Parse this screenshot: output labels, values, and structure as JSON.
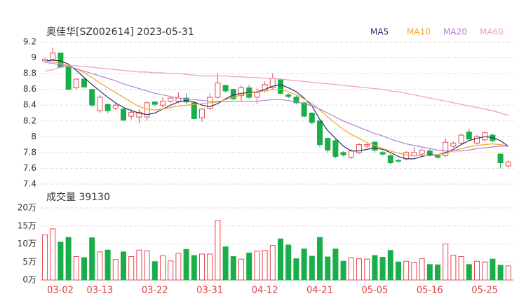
{
  "chart_data": [
    {
      "type": "candlestick",
      "title": "奥佳华[SZ002614] 2023-05-31",
      "open": [
        8.96,
        8.98,
        9.06,
        8.9,
        8.62,
        8.73,
        8.6,
        8.33,
        8.41,
        8.36,
        8.35,
        8.26,
        8.25,
        8.25,
        8.44,
        8.4,
        8.45,
        8.45,
        8.49,
        8.43,
        8.24,
        8.36,
        8.5,
        8.65,
        8.6,
        8.52,
        8.62,
        8.5,
        8.58,
        8.62,
        8.72,
        8.53,
        8.5,
        8.43,
        8.3,
        8.2,
        7.98,
        7.95,
        7.8,
        7.74,
        7.8,
        7.88,
        7.93,
        7.8,
        7.76,
        7.7,
        7.72,
        7.76,
        7.78,
        7.82,
        7.76,
        7.76,
        7.88,
        7.92,
        8.06,
        7.92,
        7.96,
        8.02,
        7.78,
        7.63
      ],
      "high": [
        9.0,
        9.13,
        9.06,
        8.9,
        8.74,
        8.74,
        8.6,
        8.53,
        8.42,
        8.42,
        8.36,
        8.35,
        8.35,
        8.45,
        8.45,
        8.5,
        8.5,
        8.56,
        8.55,
        8.44,
        8.36,
        8.55,
        8.8,
        8.66,
        8.61,
        8.65,
        8.66,
        8.62,
        8.7,
        8.8,
        8.74,
        8.55,
        8.52,
        8.44,
        8.31,
        8.21,
        7.99,
        7.97,
        7.82,
        7.84,
        7.92,
        7.92,
        7.95,
        7.82,
        7.78,
        7.72,
        7.82,
        7.87,
        7.85,
        7.84,
        7.78,
        7.98,
        7.94,
        8.04,
        8.1,
        8.02,
        8.07,
        8.04,
        7.79,
        7.7
      ],
      "low": [
        8.95,
        8.97,
        8.87,
        8.6,
        8.6,
        8.62,
        8.38,
        8.3,
        8.3,
        8.34,
        8.2,
        8.22,
        8.17,
        8.2,
        8.4,
        8.37,
        8.43,
        8.43,
        8.42,
        8.22,
        8.19,
        8.34,
        8.48,
        8.56,
        8.46,
        8.45,
        8.48,
        8.42,
        8.56,
        8.6,
        8.53,
        8.49,
        8.41,
        8.24,
        8.16,
        7.87,
        7.8,
        7.73,
        7.75,
        7.72,
        7.78,
        7.86,
        7.8,
        7.76,
        7.65,
        7.67,
        7.7,
        7.74,
        7.76,
        7.75,
        7.72,
        7.74,
        7.86,
        7.9,
        7.95,
        7.9,
        7.94,
        7.93,
        7.6,
        7.61
      ],
      "close": [
        8.98,
        9.06,
        8.88,
        8.6,
        8.73,
        8.63,
        8.4,
        8.5,
        8.33,
        8.4,
        8.21,
        8.31,
        8.31,
        8.43,
        8.41,
        8.45,
        8.49,
        8.49,
        8.44,
        8.23,
        8.35,
        8.5,
        8.68,
        8.58,
        8.48,
        8.62,
        8.5,
        8.56,
        8.66,
        8.74,
        8.55,
        8.51,
        8.43,
        8.26,
        8.18,
        7.9,
        7.83,
        7.75,
        7.77,
        7.82,
        7.9,
        7.9,
        7.83,
        7.78,
        7.67,
        7.69,
        7.8,
        7.8,
        7.83,
        7.77,
        7.74,
        7.93,
        7.92,
        8.02,
        7.97,
        8.0,
        8.05,
        7.95,
        7.67,
        7.68
      ],
      "up_color": "#e8474f",
      "down_color": "#1aae4b",
      "series": [
        {
          "name": "MA5",
          "color": "#2b2f6b",
          "values": [
            8.96,
            8.97,
            8.96,
            8.92,
            8.84,
            8.75,
            8.66,
            8.58,
            8.5,
            8.43,
            8.37,
            8.33,
            8.3,
            8.28,
            8.3,
            8.35,
            8.4,
            8.44,
            8.46,
            8.44,
            8.4,
            8.38,
            8.42,
            8.48,
            8.53,
            8.55,
            8.56,
            8.57,
            8.6,
            8.64,
            8.66,
            8.62,
            8.57,
            8.49,
            8.39,
            8.22,
            8.08,
            7.98,
            7.88,
            7.82,
            7.82,
            7.84,
            7.86,
            7.84,
            7.8,
            7.75,
            7.72,
            7.72,
            7.75,
            7.77,
            7.77,
            7.8,
            7.84,
            7.9,
            7.95,
            7.98,
            8.0,
            7.99,
            7.95,
            7.88
          ]
        },
        {
          "name": "MA10",
          "color": "#f5a623",
          "values": [
            8.96,
            8.95,
            8.93,
            8.9,
            8.86,
            8.81,
            8.75,
            8.68,
            8.62,
            8.56,
            8.5,
            8.44,
            8.38,
            8.35,
            8.34,
            8.35,
            8.37,
            8.39,
            8.4,
            8.41,
            8.42,
            8.43,
            8.44,
            8.47,
            8.5,
            8.53,
            8.55,
            8.57,
            8.58,
            8.6,
            8.6,
            8.57,
            8.53,
            8.48,
            8.42,
            8.34,
            8.25,
            8.17,
            8.09,
            8.03,
            7.98,
            7.93,
            7.89,
            7.85,
            7.82,
            7.79,
            7.77,
            7.76,
            7.76,
            7.76,
            7.77,
            7.79,
            7.82,
            7.85,
            7.87,
            7.89,
            7.9,
            7.91,
            7.9,
            7.88
          ]
        },
        {
          "name": "MA20",
          "color": "#b57fd9",
          "values": [
            8.94,
            8.93,
            8.91,
            8.89,
            8.86,
            8.83,
            8.8,
            8.77,
            8.74,
            8.71,
            8.67,
            8.64,
            8.61,
            8.58,
            8.55,
            8.53,
            8.51,
            8.49,
            8.48,
            8.47,
            8.46,
            8.45,
            8.45,
            8.45,
            8.45,
            8.45,
            8.45,
            8.45,
            8.46,
            8.47,
            8.47,
            8.46,
            8.44,
            8.42,
            8.39,
            8.35,
            8.3,
            8.25,
            8.2,
            8.16,
            8.12,
            8.08,
            8.04,
            8.01,
            7.97,
            7.94,
            7.91,
            7.89,
            7.87,
            7.85,
            7.83,
            7.82,
            7.82,
            7.82,
            7.83,
            7.85,
            7.86,
            7.87,
            7.88,
            7.88
          ]
        },
        {
          "name": "MA60",
          "color": "#f09ccb",
          "values": [
            8.83,
            8.85,
            8.88,
            8.9,
            8.9,
            8.89,
            8.88,
            8.87,
            8.86,
            8.85,
            8.84,
            8.83,
            8.82,
            8.82,
            8.81,
            8.81,
            8.8,
            8.8,
            8.79,
            8.78,
            8.77,
            8.77,
            8.77,
            8.77,
            8.76,
            8.76,
            8.75,
            8.75,
            8.74,
            8.74,
            8.73,
            8.72,
            8.71,
            8.7,
            8.69,
            8.68,
            8.67,
            8.66,
            8.65,
            8.64,
            8.63,
            8.62,
            8.61,
            8.6,
            8.58,
            8.57,
            8.55,
            8.53,
            8.51,
            8.49,
            8.47,
            8.45,
            8.43,
            8.41,
            8.39,
            8.37,
            8.35,
            8.33,
            8.3,
            8.27
          ]
        }
      ],
      "ylim": [
        7.4,
        9.2
      ],
      "yticks": [
        7.4,
        7.6,
        7.8,
        8,
        8.2,
        8.4,
        8.6,
        8.8,
        9,
        9.2
      ],
      "grid": true
    },
    {
      "type": "bar",
      "title": "成交量 39130",
      "categories": [
        "03-02",
        null,
        null,
        null,
        null,
        null,
        null,
        "03-13",
        null,
        null,
        null,
        null,
        null,
        null,
        "03-22",
        null,
        null,
        null,
        null,
        null,
        null,
        "03-31",
        null,
        null,
        null,
        null,
        null,
        null,
        "04-12",
        null,
        null,
        null,
        null,
        null,
        null,
        "04-21",
        null,
        null,
        null,
        null,
        null,
        null,
        "05-05",
        null,
        null,
        null,
        null,
        null,
        null,
        "05-16",
        null,
        null,
        null,
        null,
        null,
        null,
        "05-25",
        null,
        null,
        null
      ],
      "values": [
        12.5,
        14.2,
        10.5,
        11.8,
        6.5,
        6.2,
        11.7,
        7.8,
        8.3,
        5.7,
        7.8,
        6.5,
        8.3,
        8.1,
        5.1,
        6.7,
        5.3,
        7.4,
        8.5,
        6.8,
        7.2,
        7.2,
        16.5,
        9.2,
        6.5,
        5.8,
        7.5,
        8.0,
        8.2,
        9.6,
        11.4,
        9.7,
        5.9,
        8.6,
        6.6,
        11.8,
        6.4,
        8.6,
        5.2,
        6.2,
        5.9,
        5.8,
        6.8,
        6.3,
        8.2,
        5.0,
        5.2,
        4.8,
        5.9,
        4.3,
        4.2,
        10.0,
        6.9,
        6.5,
        4.3,
        5.2,
        5.0,
        5.8,
        4.1,
        3.913
      ],
      "ylim": [
        0,
        20
      ],
      "yticks": [
        {
          "value": 0,
          "label": "0万"
        },
        {
          "value": 5,
          "label": "5万"
        },
        {
          "value": 10,
          "label": "10万"
        },
        {
          "value": 15,
          "label": "15万"
        },
        {
          "value": 20,
          "label": "20万"
        }
      ],
      "grid": true,
      "axis_label_color": "#e04040"
    }
  ]
}
